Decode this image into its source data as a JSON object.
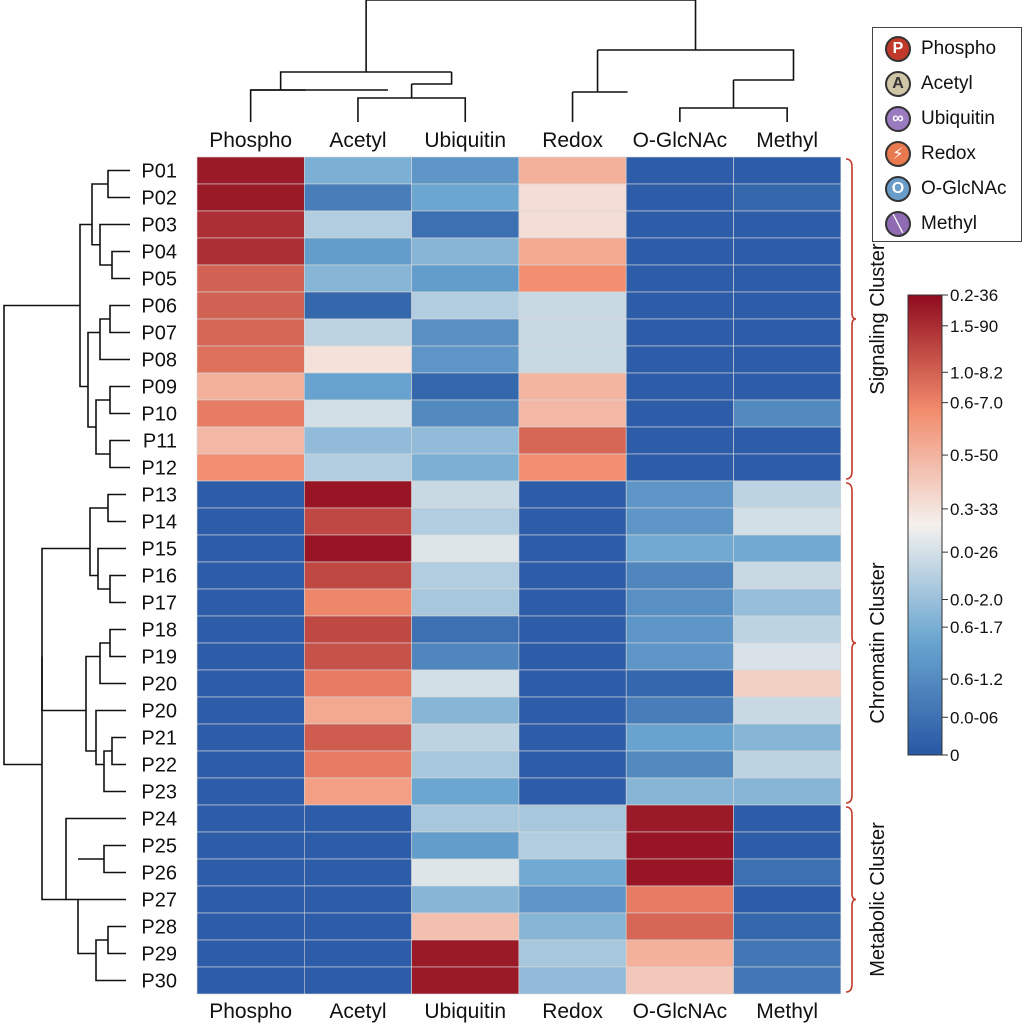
{
  "chart_data": {
    "type": "heatmap",
    "columns": [
      "Phospho",
      "Acetyl",
      "Ubiquitin",
      "Redox",
      "O-GlcNAc",
      "Methyl"
    ],
    "rows": [
      "P01",
      "P02",
      "P03",
      "P04",
      "P05",
      "P06",
      "P07",
      "P08",
      "P09",
      "P10",
      "P11",
      "P12",
      "P13",
      "P14",
      "P15",
      "P16",
      "P17",
      "P18",
      "P19",
      "P20",
      "P20",
      "P21",
      "P22",
      "P23",
      "P24",
      "P25",
      "P26",
      "P27",
      "P28",
      "P29",
      "P30"
    ],
    "values": [
      [
        0.97,
        0.28,
        0.2,
        0.66,
        0.02,
        0.02
      ],
      [
        0.97,
        0.12,
        0.25,
        0.55,
        0.02,
        0.05
      ],
      [
        0.93,
        0.38,
        0.08,
        0.55,
        0.02,
        0.02
      ],
      [
        0.93,
        0.22,
        0.3,
        0.68,
        0.02,
        0.02
      ],
      [
        0.83,
        0.3,
        0.22,
        0.74,
        0.02,
        0.02
      ],
      [
        0.83,
        0.05,
        0.38,
        0.42,
        0.02,
        0.02
      ],
      [
        0.82,
        0.4,
        0.18,
        0.42,
        0.02,
        0.02
      ],
      [
        0.8,
        0.54,
        0.2,
        0.42,
        0.02,
        0.02
      ],
      [
        0.66,
        0.24,
        0.05,
        0.65,
        0.02,
        0.02
      ],
      [
        0.78,
        0.44,
        0.16,
        0.64,
        0.02,
        0.16
      ],
      [
        0.64,
        0.32,
        0.32,
        0.82,
        0.02,
        0.02
      ],
      [
        0.74,
        0.38,
        0.28,
        0.74,
        0.02,
        0.02
      ],
      [
        0.02,
        0.98,
        0.42,
        0.02,
        0.2,
        0.4
      ],
      [
        0.02,
        0.88,
        0.38,
        0.02,
        0.2,
        0.44
      ],
      [
        0.02,
        0.98,
        0.46,
        0.02,
        0.26,
        0.26
      ],
      [
        0.02,
        0.88,
        0.38,
        0.02,
        0.15,
        0.42
      ],
      [
        0.02,
        0.76,
        0.36,
        0.02,
        0.18,
        0.33
      ],
      [
        0.02,
        0.88,
        0.08,
        0.02,
        0.2,
        0.4
      ],
      [
        0.02,
        0.86,
        0.15,
        0.02,
        0.2,
        0.45
      ],
      [
        0.02,
        0.78,
        0.44,
        0.02,
        0.05,
        0.58
      ],
      [
        0.02,
        0.68,
        0.3,
        0.02,
        0.12,
        0.42
      ],
      [
        0.02,
        0.84,
        0.4,
        0.02,
        0.24,
        0.3
      ],
      [
        0.02,
        0.78,
        0.36,
        0.02,
        0.16,
        0.4
      ],
      [
        0.02,
        0.7,
        0.25,
        0.02,
        0.3,
        0.3
      ],
      [
        0.02,
        0.02,
        0.36,
        0.36,
        0.97,
        0.02
      ],
      [
        0.02,
        0.02,
        0.22,
        0.38,
        0.98,
        0.02
      ],
      [
        0.02,
        0.02,
        0.46,
        0.26,
        0.98,
        0.08
      ],
      [
        0.02,
        0.02,
        0.3,
        0.2,
        0.78,
        0.02
      ],
      [
        0.02,
        0.02,
        0.62,
        0.3,
        0.82,
        0.05
      ],
      [
        0.02,
        0.02,
        0.97,
        0.36,
        0.66,
        0.1
      ],
      [
        0.02,
        0.02,
        0.97,
        0.32,
        0.6,
        0.1
      ]
    ],
    "colorbar": {
      "tick_labels": [
        "0.2-36",
        "1.5-90",
        "1.0-8.2",
        "0.6-7.0",
        "0.5-50",
        "0.3-33",
        "0.0-26",
        "0.0-2.0",
        "0.6-1.7",
        "0.6-1.2",
        "0.0-06",
        "0"
      ],
      "tick_fractions": [
        1.0,
        0.933,
        0.832,
        0.766,
        0.652,
        0.535,
        0.441,
        0.338,
        0.278,
        0.165,
        0.082,
        0.0
      ]
    },
    "clusters": [
      {
        "label": "Signaling Cluster",
        "rows": [
          0,
          11
        ]
      },
      {
        "label": "Chromatin Cluster",
        "rows": [
          12,
          23
        ]
      },
      {
        "label": "Metabolic Cluster",
        "rows": [
          24,
          30
        ]
      }
    ],
    "legend": [
      {
        "label": "Phospho",
        "glyph": "P",
        "color": "#c0392b",
        "icon": "phospho-icon"
      },
      {
        "label": "Acetyl",
        "glyph": "A",
        "color": "#cfc6a8",
        "icon": "acetyl-icon"
      },
      {
        "label": "Ubiquitin",
        "glyph": "∞",
        "color": "#9b7bc0",
        "icon": "ubiquitin-icon"
      },
      {
        "label": "Redox",
        "glyph": "⚡",
        "color": "#e9794f",
        "icon": "redox-icon"
      },
      {
        "label": "O-GlcNAc",
        "glyph": "O",
        "color": "#6a9cc9",
        "icon": "oglcnac-icon"
      },
      {
        "label": "Methyl",
        "glyph": "╲",
        "color": "#8e6bb3",
        "icon": "methyl-icon"
      }
    ],
    "colorscale": [
      "#2857a4",
      "#6aa6d0",
      "#f4f1ee",
      "#f28b6c",
      "#8f0b1e"
    ]
  }
}
